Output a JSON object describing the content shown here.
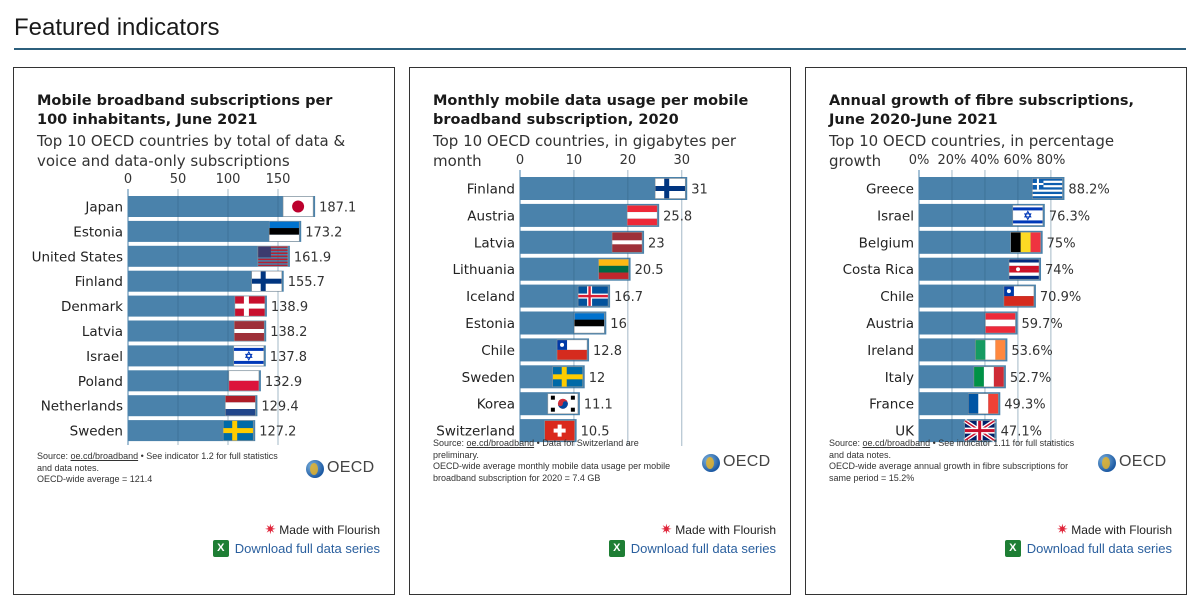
{
  "page": {
    "heading": "Featured indicators"
  },
  "download_label": "Download full data series",
  "flourish_label": "Made with Flourish",
  "oecd_logo_text": "OECD",
  "colors": {
    "bar": "#4a82ab",
    "rule": "#2c5f7c",
    "link": "#2a5f9e"
  },
  "cards": [
    {
      "title": "Mobile broadband subscriptions per 100 inhabitants, June 2021",
      "subtitle": "Top 10 OECD countries by total of data & voice and data-only subscriptions",
      "source_link": "oe.cd/broadband",
      "source_lines": [
        "Source: ",
        " • See indicator 1.2 for full statistics",
        "and data notes.",
        "OECD-wide average = 121.4"
      ]
    },
    {
      "title": "Monthly mobile data usage per mobile broadband subscription, 2020",
      "subtitle": "Top 10 OECD countries, in gigabytes per month",
      "source_link": "oe.cd/broadband",
      "source_lines": [
        "Source: ",
        " • Data for Switzerland are",
        "preliminary.",
        "OECD-wide average monthly mobile data usage per mobile",
        "broadband subscription for 2020 = 7.4 GB"
      ]
    },
    {
      "title": "Annual growth of fibre subscriptions, June 2020-June 2021",
      "subtitle": "Top 10 OECD countries, in percentage growth",
      "source_link": "oe.cd/broadband",
      "source_lines": [
        "Source: ",
        " • See indicator 1.11 for full statistics",
        "and data notes.",
        "OECD-wide average annual growth in fibre subscriptions for",
        "same period = 15.2%"
      ]
    }
  ],
  "chart_data": [
    {
      "type": "bar",
      "orientation": "horizontal",
      "categories": [
        "Japan",
        "Estonia",
        "United States",
        "Finland",
        "Denmark",
        "Latvia",
        "Israel",
        "Poland",
        "Netherlands",
        "Sweden"
      ],
      "values": [
        187.1,
        173.2,
        161.9,
        155.7,
        138.9,
        138.2,
        137.8,
        132.9,
        129.4,
        127.2
      ],
      "value_labels": [
        "187.1",
        "173.2",
        "161.9",
        "155.7",
        "138.9",
        "138.2",
        "137.8",
        "132.9",
        "129.4",
        "127.2"
      ],
      "flags": [
        "japan-flag",
        "estonia-flag",
        "united-states-flag",
        "finland-flag",
        "denmark-flag",
        "latvia-flag",
        "israel-flag",
        "poland-flag",
        "netherlands-flag",
        "sweden-flag"
      ],
      "xticks": [
        0,
        50,
        100,
        150
      ],
      "xtick_labels": [
        "0",
        "50",
        "100",
        "150"
      ],
      "xlim": [
        0,
        200
      ],
      "grid": true
    },
    {
      "type": "bar",
      "orientation": "horizontal",
      "categories": [
        "Finland",
        "Austria",
        "Latvia",
        "Lithuania",
        "Iceland",
        "Estonia",
        "Chile",
        "Sweden",
        "Korea",
        "Switzerland"
      ],
      "values": [
        31,
        25.8,
        23,
        20.5,
        16.7,
        16,
        12.8,
        12,
        11.1,
        10.5
      ],
      "value_labels": [
        "31",
        "25.8",
        "23",
        "20.5",
        "16.7",
        "16",
        "12.8",
        "12",
        "11.1",
        "10.5"
      ],
      "flags": [
        "finland-flag",
        "austria-flag",
        "latvia-flag",
        "lithuania-flag",
        "iceland-flag",
        "estonia-flag",
        "chile-flag",
        "sweden-flag",
        "korea-flag",
        "switzerland-flag"
      ],
      "xticks": [
        0,
        10,
        20,
        30
      ],
      "xtick_labels": [
        "0",
        "10",
        "20",
        "30"
      ],
      "xlim": [
        0,
        33
      ],
      "grid": true
    },
    {
      "type": "bar",
      "orientation": "horizontal",
      "categories": [
        "Greece",
        "Israel",
        "Belgium",
        "Costa Rica",
        "Chile",
        "Austria",
        "Ireland",
        "Italy",
        "France",
        "UK"
      ],
      "values": [
        88.2,
        76.3,
        75,
        74,
        70.9,
        59.7,
        53.6,
        52.7,
        49.3,
        47.1
      ],
      "value_labels": [
        "88.2%",
        "76.3%",
        "75%",
        "74%",
        "70.9%",
        "59.7%",
        "53.6%",
        "52.7%",
        "49.3%",
        "47.1%"
      ],
      "flags": [
        "greece-flag",
        "israel-flag",
        "belgium-flag",
        "costa-rica-flag",
        "chile-flag",
        "austria-flag",
        "ireland-flag",
        "italy-flag",
        "france-flag",
        "uk-flag"
      ],
      "xticks": [
        0,
        20,
        40,
        60,
        80
      ],
      "xtick_labels": [
        "0%",
        "20%",
        "40%",
        "60%",
        "80%"
      ],
      "xlim": [
        0,
        94
      ],
      "grid": true
    }
  ]
}
